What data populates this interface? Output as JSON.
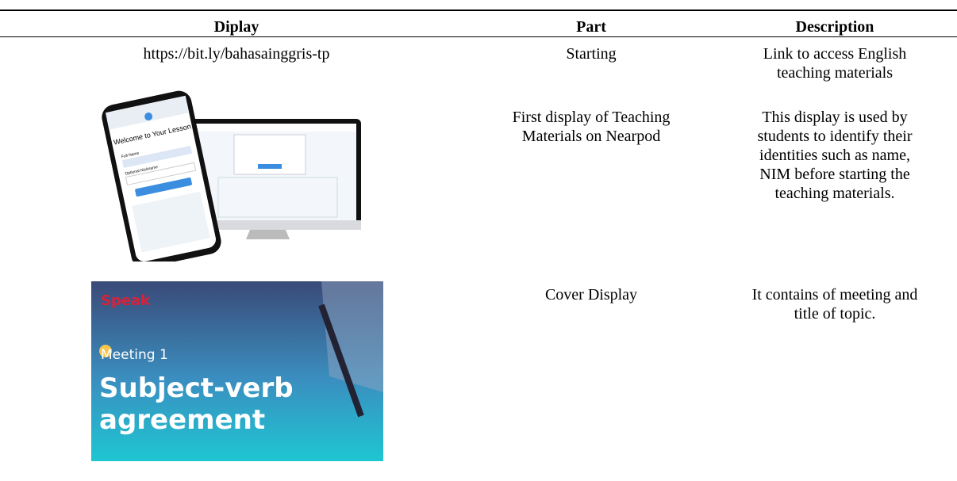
{
  "table": {
    "headers": [
      "Diplay",
      "Part",
      "Description"
    ],
    "rows": [
      {
        "display": "https://bit.ly/bahasainggris-tp",
        "part": [
          "Starting"
        ],
        "description": [
          "Link to access English",
          "teaching materials"
        ]
      },
      {
        "display": {
          "phone_title": "Welcome to Your Lesson",
          "phone_field_1": "Full Name",
          "phone_field_2": "Optional Nickname"
        },
        "part": [
          "First display of Teaching",
          "Materials on Nearpod"
        ],
        "description": [
          "This display is used by",
          "students to identify their",
          "identities such as name,",
          "NIM before starting the",
          "teaching materials."
        ]
      },
      {
        "display": {
          "logo": "Speak",
          "meeting": "Meeting 1",
          "title_line_1": "Subject-verb",
          "title_line_2": "agreement"
        },
        "part": [
          "Cover Display"
        ],
        "description": [
          "It contains of meeting and",
          "title of topic."
        ]
      }
    ]
  }
}
